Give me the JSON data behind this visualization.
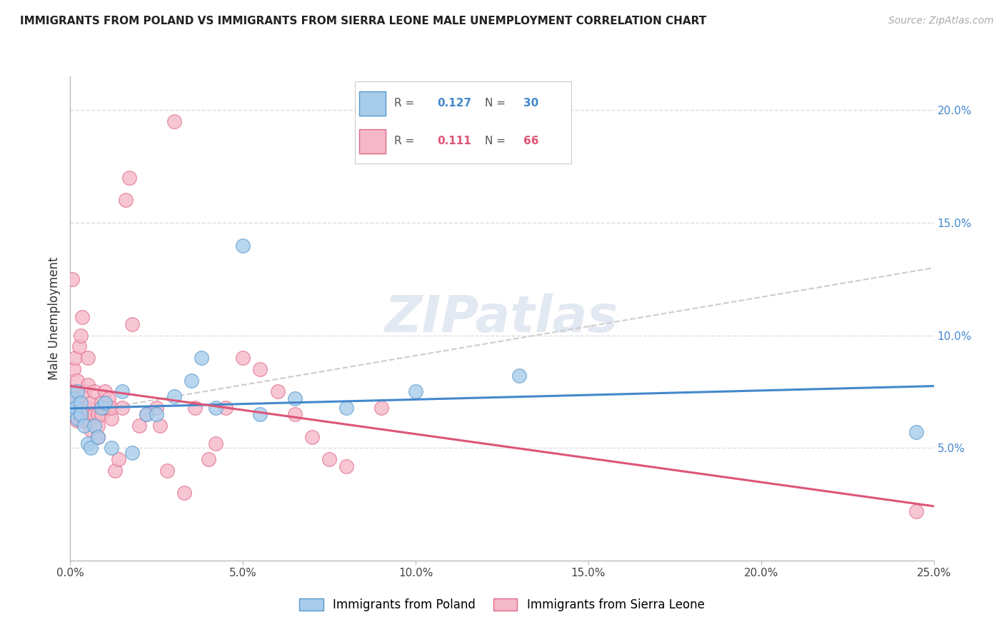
{
  "title": "IMMIGRANTS FROM POLAND VS IMMIGRANTS FROM SIERRA LEONE MALE UNEMPLOYMENT CORRELATION CHART",
  "source": "Source: ZipAtlas.com",
  "ylabel": "Male Unemployment",
  "watermark": "ZIPatlas",
  "legend_label1": "Immigrants from Poland",
  "legend_label2": "Immigrants from Sierra Leone",
  "R1": 0.127,
  "N1": 30,
  "R2": 0.111,
  "N2": 66,
  "color_blue_fill": "#a8cceb",
  "color_blue_edge": "#5599cc",
  "color_pink_fill": "#f5b8c8",
  "color_pink_edge": "#e06888",
  "color_blue_line": "#4488cc",
  "color_pink_line": "#dd5577",
  "color_dashed": "#cccccc",
  "xlim": [
    0.0,
    0.25
  ],
  "ylim": [
    0.0,
    0.215
  ],
  "xtick_vals": [
    0.0,
    0.05,
    0.1,
    0.15,
    0.2,
    0.25
  ],
  "ytick_right_vals": [
    0.05,
    0.1,
    0.15,
    0.2
  ],
  "poland_x": [
    0.0005,
    0.001,
    0.0015,
    0.002,
    0.002,
    0.003,
    0.003,
    0.004,
    0.005,
    0.006,
    0.007,
    0.008,
    0.009,
    0.01,
    0.012,
    0.015,
    0.018,
    0.022,
    0.025,
    0.03,
    0.035,
    0.038,
    0.042,
    0.05,
    0.055,
    0.065,
    0.08,
    0.1,
    0.13,
    0.245
  ],
  "poland_y": [
    0.067,
    0.072,
    0.068,
    0.063,
    0.075,
    0.07,
    0.065,
    0.06,
    0.052,
    0.05,
    0.06,
    0.055,
    0.068,
    0.07,
    0.05,
    0.075,
    0.048,
    0.065,
    0.065,
    0.073,
    0.08,
    0.09,
    0.068,
    0.14,
    0.065,
    0.072,
    0.068,
    0.075,
    0.082,
    0.057
  ],
  "sierra_x": [
    0.0003,
    0.0005,
    0.0007,
    0.001,
    0.001,
    0.001,
    0.0013,
    0.0015,
    0.002,
    0.002,
    0.002,
    0.0025,
    0.003,
    0.003,
    0.003,
    0.003,
    0.0035,
    0.004,
    0.004,
    0.004,
    0.005,
    0.005,
    0.005,
    0.005,
    0.006,
    0.006,
    0.006,
    0.007,
    0.007,
    0.008,
    0.008,
    0.008,
    0.009,
    0.009,
    0.01,
    0.01,
    0.011,
    0.011,
    0.012,
    0.012,
    0.013,
    0.014,
    0.015,
    0.016,
    0.017,
    0.018,
    0.02,
    0.022,
    0.025,
    0.026,
    0.028,
    0.03,
    0.033,
    0.036,
    0.04,
    0.042,
    0.045,
    0.05,
    0.055,
    0.06,
    0.065,
    0.07,
    0.075,
    0.08,
    0.09,
    0.245
  ],
  "sierra_y": [
    0.068,
    0.125,
    0.072,
    0.065,
    0.075,
    0.085,
    0.09,
    0.068,
    0.062,
    0.07,
    0.08,
    0.095,
    0.062,
    0.065,
    0.07,
    0.1,
    0.108,
    0.065,
    0.068,
    0.075,
    0.062,
    0.068,
    0.078,
    0.09,
    0.058,
    0.062,
    0.07,
    0.065,
    0.075,
    0.055,
    0.06,
    0.065,
    0.065,
    0.07,
    0.068,
    0.075,
    0.068,
    0.072,
    0.063,
    0.068,
    0.04,
    0.045,
    0.068,
    0.16,
    0.17,
    0.105,
    0.06,
    0.065,
    0.068,
    0.06,
    0.04,
    0.195,
    0.03,
    0.068,
    0.045,
    0.052,
    0.068,
    0.09,
    0.085,
    0.075,
    0.065,
    0.055,
    0.045,
    0.042,
    0.068,
    0.022
  ]
}
